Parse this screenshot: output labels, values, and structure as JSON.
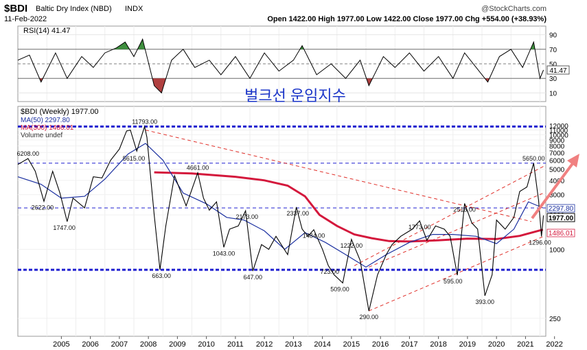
{
  "header": {
    "symbol": "$BDI",
    "name": "Baltic Dry Index (NBD)",
    "exchange": "INDX",
    "date": "11-Feb-2022",
    "ohlc": "Open 1422.00  High 1977.00  Low 1422.00  Close 1977.00  Chg +554.00 (+38.93%)",
    "watermark": "@StockCharts.com"
  },
  "rsi_panel": {
    "legend": "RSI(14) 41.47",
    "last_value": "41.47",
    "annotation": "벌크선 운임지수",
    "y_ticks": [
      "90",
      "70",
      "50",
      "30",
      "10"
    ]
  },
  "price_panel": {
    "legend_main": "$BDI (Weekly) 1977.00",
    "legend_ma50": "MA(50) 2297.80",
    "legend_ma300": "MA(300) 1486.01",
    "legend_volume": "Volume undef",
    "y_ticks": [
      "12000",
      "11000",
      "10000",
      "9000",
      "8000",
      "7000",
      "6000",
      "5000",
      "4000",
      "3000",
      "2000",
      "1000",
      "250"
    ],
    "value_tags": [
      "2297.80",
      "1977.00",
      "1486.01"
    ]
  },
  "x_axis": {
    "years": [
      "2005",
      "2006",
      "2007",
      "2008",
      "2009",
      "2010",
      "2011",
      "2012",
      "2013",
      "2014",
      "2015",
      "2016",
      "2017",
      "2018",
      "2019",
      "2020",
      "2021",
      "2022"
    ]
  },
  "colors": {
    "price": "#000000",
    "ma50": "#1a2fa0",
    "ma300": "#d4183c",
    "horizontal_lines": "#1f1fd0",
    "trendlines": "#e0302a",
    "rsi_fill_high": "#3f8f3f",
    "rsi_fill_low": "#b04040",
    "annotation": "#1a34c8",
    "arrow": "#f08080"
  },
  "chart_data": {
    "type": "line",
    "scale": "log",
    "ylim": [
      200,
      14000
    ],
    "xlim": [
      2004.0,
      2022.2
    ],
    "price_series": {
      "name": "$BDI (Weekly)",
      "x": [
        2004.0,
        2004.35,
        2004.6,
        2004.9,
        2005.2,
        2005.45,
        2005.7,
        2005.9,
        2006.3,
        2006.6,
        2006.9,
        2007.2,
        2007.5,
        2007.75,
        2007.88,
        2008.1,
        2008.37,
        2008.45,
        2008.7,
        2008.9,
        2009.1,
        2009.4,
        2009.8,
        2010.2,
        2010.4,
        2010.6,
        2010.85,
        2011.1,
        2011.3,
        2011.6,
        2011.85,
        2012.1,
        2012.4,
        2012.65,
        2012.9,
        2013.3,
        2013.6,
        2013.8,
        2014.0,
        2014.2,
        2014.5,
        2014.7,
        2014.9,
        2015.2,
        2015.5,
        2015.8,
        2016.1,
        2016.4,
        2016.7,
        2016.9,
        2017.2,
        2017.6,
        2017.85,
        2018.1,
        2018.4,
        2018.7,
        2018.9,
        2019.15,
        2019.4,
        2019.65,
        2019.85,
        2020.1,
        2020.35,
        2020.5,
        2020.8,
        2021.1,
        2021.3,
        2021.55,
        2021.78,
        2021.95,
        2022.05,
        2022.12
      ],
      "y": [
        5500,
        6208,
        4800,
        2622,
        4800,
        3100,
        1747,
        2800,
        2300,
        4300,
        4200,
        6000,
        7500,
        10800,
        11000,
        7200,
        11793,
        9500,
        2000,
        663,
        1600,
        4400,
        2400,
        4661,
        2800,
        2200,
        2600,
        1043,
        1500,
        1600,
        2173,
        647,
        1100,
        1000,
        1300,
        900,
        2337,
        1500,
        1300,
        1484,
        1000,
        723,
        600,
        509,
        1222,
        800,
        290,
        600,
        900,
        1100,
        1300,
        1500,
        1773,
        1200,
        1600,
        1500,
        1300,
        595,
        2518,
        1700,
        1500,
        393,
        600,
        1800,
        1500,
        1900,
        3200,
        3500,
        5650,
        2700,
        1296,
        1977
      ]
    },
    "ma50": {
      "name": "MA(50)",
      "x": [
        2004.0,
        2004.8,
        2005.5,
        2006.3,
        2007.0,
        2007.8,
        2008.4,
        2009.0,
        2009.7,
        2010.5,
        2011.2,
        2011.8,
        2012.5,
        2013.2,
        2013.9,
        2014.6,
        2015.3,
        2016.0,
        2016.7,
        2017.5,
        2018.3,
        2019.0,
        2019.8,
        2020.5,
        2021.1,
        2021.6,
        2022.1
      ],
      "y": [
        4300,
        3700,
        2800,
        2900,
        4100,
        6800,
        8400,
        6000,
        3100,
        2500,
        1900,
        1800,
        1450,
        1000,
        1400,
        1150,
        900,
        700,
        900,
        1150,
        1350,
        1350,
        1300,
        1120,
        1500,
        2600,
        2297.8
      ]
    },
    "ma300": {
      "name": "MA(300)",
      "x": [
        2008.7,
        2010.0,
        2011.5,
        2012.5,
        2013.3,
        2013.9,
        2014.4,
        2015.0,
        2015.6,
        2016.2,
        2016.8,
        2017.5,
        2018.5,
        2019.5,
        2020.5,
        2021.3,
        2022.1
      ],
      "y": [
        4700,
        4600,
        4300,
        4000,
        3600,
        2900,
        2000,
        1600,
        1350,
        1250,
        1180,
        1170,
        1200,
        1240,
        1230,
        1310,
        1486.01
      ]
    },
    "rsi_series": {
      "name": "RSI(14)",
      "x": [
        2004.0,
        2004.4,
        2004.8,
        2005.3,
        2005.7,
        2006.2,
        2006.6,
        2007.0,
        2007.4,
        2007.7,
        2008.0,
        2008.3,
        2008.7,
        2008.95,
        2009.3,
        2009.7,
        2010.1,
        2010.6,
        2011.0,
        2011.5,
        2012.0,
        2012.5,
        2013.0,
        2013.5,
        2013.8,
        2014.3,
        2014.8,
        2015.3,
        2015.8,
        2016.1,
        2016.6,
        2017.0,
        2017.5,
        2018.0,
        2018.5,
        2019.0,
        2019.4,
        2019.8,
        2020.2,
        2020.6,
        2021.0,
        2021.4,
        2021.78,
        2022.0,
        2022.12
      ],
      "y": [
        55,
        62,
        25,
        65,
        30,
        60,
        45,
        65,
        72,
        80,
        60,
        84,
        20,
        10,
        55,
        70,
        45,
        55,
        35,
        60,
        30,
        65,
        40,
        55,
        75,
        35,
        50,
        30,
        55,
        20,
        60,
        45,
        65,
        40,
        60,
        30,
        65,
        45,
        25,
        60,
        70,
        45,
        80,
        30,
        41.47
      ]
    },
    "price_labels": [
      {
        "x": 2004.35,
        "value": "6208.00"
      },
      {
        "x": 2004.85,
        "value": "2622.00"
      },
      {
        "x": 2005.6,
        "value": "1747.00"
      },
      {
        "x": 2008.37,
        "value": "11793.00"
      },
      {
        "x": 2008.0,
        "value": "5615.00"
      },
      {
        "x": 2008.95,
        "value": "663.00"
      },
      {
        "x": 2010.2,
        "value": "4661.00"
      },
      {
        "x": 2011.1,
        "value": "1043.00"
      },
      {
        "x": 2011.9,
        "value": "2173.00"
      },
      {
        "x": 2012.1,
        "value": "647.00"
      },
      {
        "x": 2013.65,
        "value": "2337.00"
      },
      {
        "x": 2014.2,
        "value": "1484.00"
      },
      {
        "x": 2014.75,
        "value": "723.00"
      },
      {
        "x": 2015.1,
        "value": "509.00"
      },
      {
        "x": 2015.5,
        "value": "1222.00"
      },
      {
        "x": 2016.1,
        "value": "290.00"
      },
      {
        "x": 2017.85,
        "value": "1773.00"
      },
      {
        "x": 2019.0,
        "value": "595.00"
      },
      {
        "x": 2019.4,
        "value": "2518.00"
      },
      {
        "x": 2020.1,
        "value": "393.00"
      },
      {
        "x": 2021.78,
        "value": "5650.00"
      },
      {
        "x": 2022.0,
        "value": "1296.00"
      }
    ],
    "horizontal_lines": [
      {
        "y": 11793,
        "style": "thick"
      },
      {
        "y": 5650,
        "style": "thin"
      },
      {
        "y": 2297.8,
        "style": "thin"
      },
      {
        "y": 663,
        "style": "thick"
      }
    ],
    "trendlines": [
      {
        "x": [
          2008.4,
          2021.7
        ],
        "y": [
          11000,
          1750
        ]
      },
      {
        "x": [
          2016.1,
          2022.12
        ],
        "y": [
          290,
          1296
        ]
      },
      {
        "x": [
          2016.1,
          2022.12
        ],
        "y": [
          700,
          3100
        ]
      },
      {
        "x": [
          2015.6,
          2022.12
        ],
        "y": [
          720,
          5300
        ]
      }
    ]
  }
}
